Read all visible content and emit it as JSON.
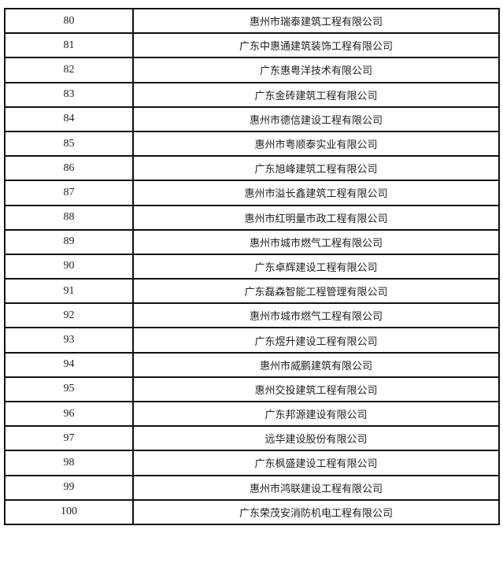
{
  "rows": [
    {
      "no": "80",
      "company": "惠州市瑞泰建筑工程有限公司"
    },
    {
      "no": "81",
      "company": "广东中惠通建筑装饰工程有限公司"
    },
    {
      "no": "82",
      "company": "广东惠粤洋技术有限公司"
    },
    {
      "no": "83",
      "company": "广东金砖建筑工程有限公司"
    },
    {
      "no": "84",
      "company": "惠州市德信建设工程有限公司"
    },
    {
      "no": "85",
      "company": "惠州市粤顺泰实业有限公司"
    },
    {
      "no": "86",
      "company": "广东旭峰建筑工程有限公司"
    },
    {
      "no": "87",
      "company": "惠州市溢长鑫建筑工程有限公司"
    },
    {
      "no": "88",
      "company": "惠州市红明量市政工程有限公司"
    },
    {
      "no": "89",
      "company": "惠州市城市燃气工程有限公司"
    },
    {
      "no": "90",
      "company": "广东卓辉建设工程有限公司"
    },
    {
      "no": "91",
      "company": "广东磊森智能工程管理有限公司"
    },
    {
      "no": "92",
      "company": "惠州市城市燃气工程有限公司"
    },
    {
      "no": "93",
      "company": "广东煜升建设工程有限公司"
    },
    {
      "no": "94",
      "company": "惠州市威鹏建筑有限公司"
    },
    {
      "no": "95",
      "company": "惠州交投建筑工程有限公司"
    },
    {
      "no": "96",
      "company": "广东邦源建设有限公司"
    },
    {
      "no": "97",
      "company": "远华建设股份有限公司"
    },
    {
      "no": "98",
      "company": "广东枫盛建设工程有限公司"
    },
    {
      "no": "99",
      "company": "惠州市鸿联建设工程有限公司"
    },
    {
      "no": "100",
      "company": "广东荣茂安消防机电工程有限公司"
    }
  ]
}
